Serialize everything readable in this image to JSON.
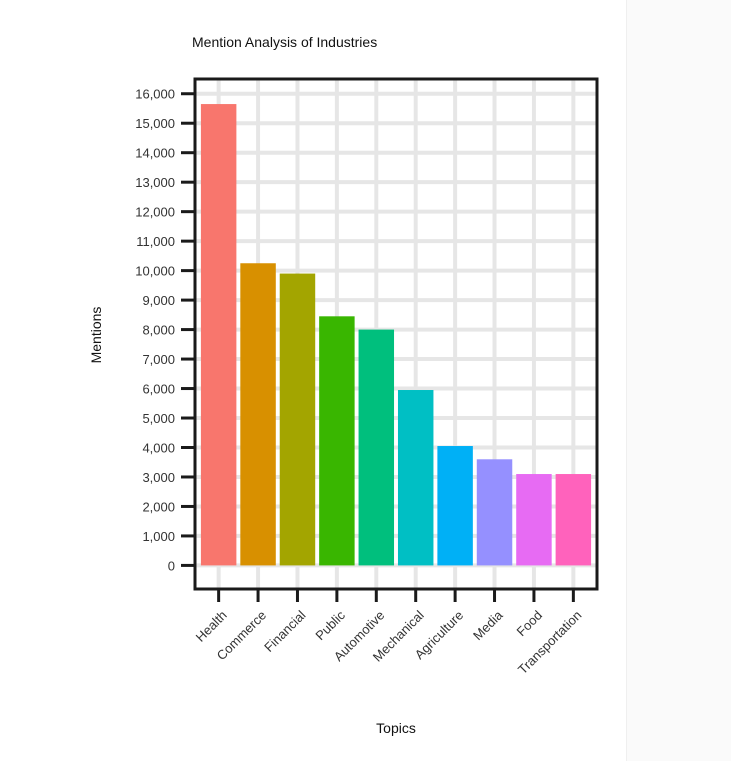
{
  "chart_data": {
    "type": "bar",
    "title": "Mention Analysis of Industries",
    "xlabel": "Topics",
    "ylabel": "Mentions",
    "categories": [
      "Health",
      "Commerce",
      "Financial",
      "Public",
      "Automotive",
      "Mechanical",
      "Agriculture",
      "Media",
      "Food",
      "Transportation"
    ],
    "values": [
      15650,
      10250,
      9900,
      8450,
      8000,
      5950,
      4050,
      3600,
      3100,
      3100
    ],
    "colors": [
      "#F8766D",
      "#D89000",
      "#A3A500",
      "#39B600",
      "#00BF7D",
      "#00BFC4",
      "#00B0F6",
      "#9590FF",
      "#E76BF3",
      "#FF62BC"
    ],
    "ylim": [
      -800,
      16500
    ],
    "yticks": [
      0,
      1000,
      2000,
      3000,
      4000,
      5000,
      6000,
      7000,
      8000,
      9000,
      10000,
      11000,
      12000,
      13000,
      14000,
      15000,
      16000
    ],
    "ytick_labels": [
      "0",
      "1,000",
      "2,000",
      "3,000",
      "4,000",
      "5,000",
      "6,000",
      "7,000",
      "8,000",
      "9,000",
      "10,000",
      "11,000",
      "12,000",
      "13,000",
      "14,000",
      "15,000",
      "16,000"
    ],
    "grid": true,
    "legend": "none"
  }
}
